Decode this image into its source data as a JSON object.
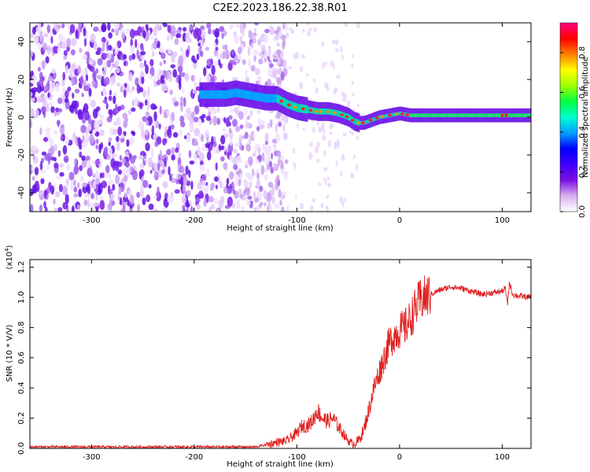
{
  "title": "C2E2.2023.186.22.38.R01",
  "chart_data": [
    {
      "type": "heatmap",
      "xlabel": "Height of straight line (km)",
      "ylabel": "Frequency (Hz)",
      "xlim": [
        -360,
        128
      ],
      "ylim": [
        -50,
        50
      ],
      "xticks": [
        -300,
        -200,
        -100,
        0,
        100
      ],
      "yticks": [
        -40,
        -20,
        0,
        20,
        40
      ],
      "colorbar": {
        "label": "Normalized spectral amplitude",
        "ticks": [
          "0.0",
          "0.2",
          "0.4",
          "0.6",
          "0.8"
        ],
        "range": [
          0,
          0.95
        ],
        "colors": [
          "#ffffff",
          "#d8b0f0",
          "#7a10e0",
          "#4000ff",
          "#0000ff",
          "#00a0ff",
          "#00ffd0",
          "#00ff40",
          "#a0ff00",
          "#ffff00",
          "#ff8000",
          "#ff0000",
          "#ff0080"
        ]
      },
      "dominant_frequency_trace": {
        "x": [
          -190,
          -170,
          -160,
          -150,
          -140,
          -130,
          -120,
          -110,
          -100,
          -90,
          -80,
          -70,
          -60,
          -50,
          -45,
          -40,
          -35,
          -30,
          -25,
          -20,
          -10,
          0,
          10,
          30,
          60,
          90,
          100,
          110,
          128
        ],
        "y": [
          12,
          12,
          13,
          12,
          11,
          10,
          10,
          7,
          5,
          4,
          3,
          3,
          2,
          0,
          -2,
          -3,
          -3,
          -2,
          -1,
          0,
          1,
          2,
          1,
          1,
          1,
          1,
          1,
          1,
          1
        ]
      },
      "grid": false
    },
    {
      "type": "line",
      "xlabel": "Height of straight line (km)",
      "ylabel": "SNR (10 * V/V)",
      "y_multiplier": "(x10",
      "y_multiplier_exp": "4",
      "y_multiplier_close": ")",
      "xlim": [
        -360,
        128
      ],
      "ylim": [
        0,
        1.25
      ],
      "xticks": [
        -300,
        -200,
        -100,
        0,
        100
      ],
      "yticks": [
        "0.0",
        "0.2",
        "0.4",
        "0.6",
        "0.8",
        "1.0",
        "1.2"
      ],
      "series": [
        {
          "color": "#e02020",
          "x": [
            -360,
            -300,
            -200,
            -140,
            -125,
            -120,
            -110,
            -100,
            -95,
            -90,
            -85,
            -80,
            -75,
            -70,
            -65,
            -60,
            -55,
            -50,
            -45,
            -40,
            -35,
            -30,
            -25,
            -20,
            -15,
            -10,
            -5,
            0,
            5,
            10,
            15,
            20,
            25,
            30,
            40,
            50,
            60,
            70,
            80,
            90,
            100,
            103,
            105,
            107,
            110,
            115,
            128
          ],
          "y": [
            0.01,
            0.01,
            0.01,
            0.01,
            0.03,
            0.04,
            0.05,
            0.1,
            0.15,
            0.15,
            0.18,
            0.25,
            0.2,
            0.18,
            0.2,
            0.15,
            0.1,
            0.05,
            0.03,
            0.05,
            0.12,
            0.25,
            0.4,
            0.5,
            0.6,
            0.7,
            0.75,
            0.78,
            0.8,
            0.85,
            0.92,
            0.98,
            1.0,
            1.02,
            1.05,
            1.07,
            1.06,
            1.04,
            1.02,
            1.03,
            1.04,
            1.06,
            0.95,
            1.1,
            1.02,
            1.01,
            1.0
          ]
        }
      ],
      "grid": false
    }
  ]
}
